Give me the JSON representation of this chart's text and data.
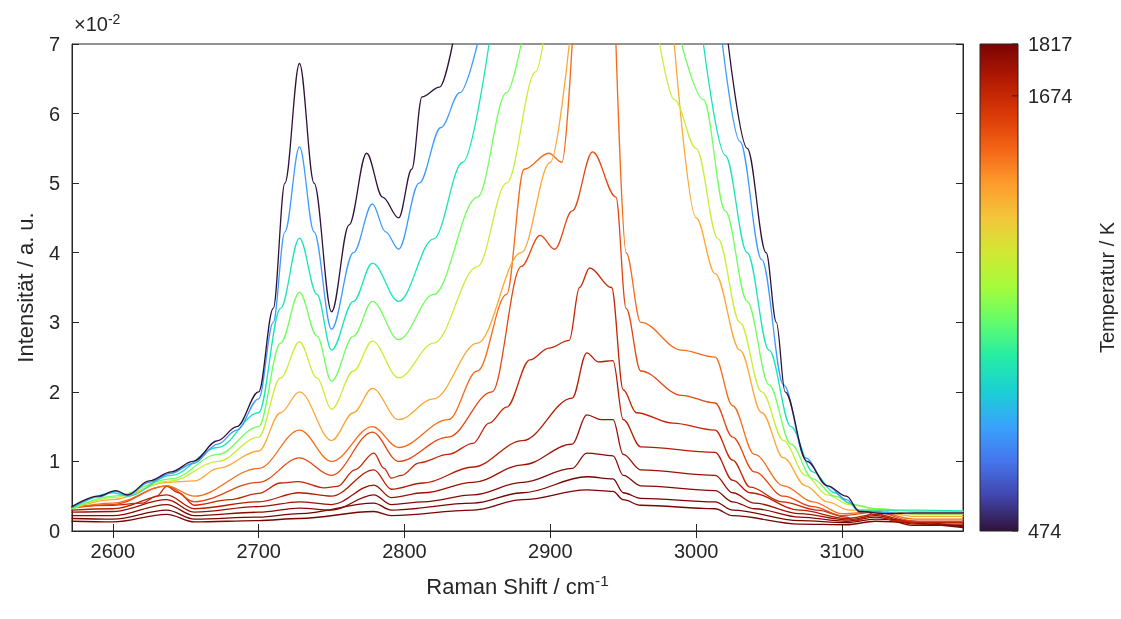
{
  "chart_data": {
    "type": "line",
    "xlabel": "Raman Shift / cm$^{-1}$",
    "ylabel": "Intensität / a. u.",
    "clabel": "Temperatur / K",
    "annotations": [
      "×10$^{-2}$"
    ],
    "xlim": [
      2572,
      3183
    ],
    "ylim": [
      0,
      7
    ],
    "xticks": [
      2600,
      2700,
      2800,
      2900,
      3000,
      3100
    ],
    "yticks": [
      0,
      1,
      2,
      3,
      4,
      5,
      6,
      7
    ],
    "clim": [
      474,
      1817
    ],
    "cticks": [
      474,
      1674,
      1817
    ],
    "marker": "none",
    "line_style": "solid",
    "series": [
      {
        "color": "#30123b",
        "x": [
          2572,
          2590,
          2602,
          2610,
          2625,
          2640,
          2655,
          2672,
          2685,
          2700,
          2710,
          2718,
          2728,
          2738,
          2750,
          2762,
          2774,
          2785,
          2796,
          2805,
          2812,
          2824,
          2833,
          2900,
          3022,
          3035,
          3048,
          3055,
          3061,
          3076,
          3090,
          3103,
          3112,
          3130,
          3150,
          3183
        ],
        "values": [
          0.35,
          0.5,
          0.58,
          0.52,
          0.72,
          0.85,
          1.0,
          1.3,
          1.5,
          2.0,
          3.2,
          5.0,
          6.72,
          5.0,
          3.15,
          4.4,
          5.43,
          4.8,
          4.5,
          5.2,
          6.24,
          6.38,
          7,
          null,
          7,
          5.5,
          4,
          3,
          2,
          1,
          0.65,
          0.5,
          0.28,
          0.25,
          0.26,
          0.26
        ]
      },
      {
        "color": "#3e9bfe",
        "x": [
          2572,
          2590,
          2602,
          2610,
          2625,
          2640,
          2655,
          2672,
          2685,
          2700,
          2710,
          2718,
          2728,
          2738,
          2750,
          2765,
          2778,
          2787,
          2796,
          2810,
          2825,
          2838,
          2850,
          2930,
          3018,
          3030,
          3045,
          3060,
          3075,
          3090,
          3103,
          3112,
          3150,
          3183
        ],
        "values": [
          0.34,
          0.49,
          0.57,
          0.51,
          0.7,
          0.83,
          0.97,
          1.25,
          1.45,
          1.9,
          3.0,
          4.3,
          5.52,
          4.3,
          2.9,
          4.0,
          4.7,
          4.3,
          4.05,
          5.0,
          5.8,
          6.3,
          7,
          null,
          7,
          5.6,
          3.9,
          2.1,
          1.05,
          0.65,
          0.45,
          0.28,
          0.25,
          0.25
        ]
      },
      {
        "color": "#1ae4b6",
        "x": [
          2572,
          2600,
          2610,
          2640,
          2672,
          2700,
          2715,
          2728,
          2740,
          2750,
          2765,
          2778,
          2796,
          2820,
          2840,
          2858,
          2930,
          3005,
          3020,
          3035,
          3050,
          3065,
          3080,
          3095,
          3105,
          3112,
          3123,
          3150,
          3183
        ],
        "values": [
          0.33,
          0.55,
          0.5,
          0.8,
          1.2,
          1.7,
          3.2,
          4.21,
          3.4,
          2.6,
          3.3,
          3.85,
          3.3,
          4.2,
          5.3,
          7,
          null,
          7,
          5.4,
          4.0,
          2.6,
          1.5,
          0.85,
          0.55,
          0.4,
          0.3,
          0.3,
          0.3,
          0.29
        ]
      },
      {
        "color": "#72fe5e",
        "x": [
          2572,
          2600,
          2640,
          2672,
          2700,
          2715,
          2728,
          2740,
          2750,
          2765,
          2778,
          2796,
          2820,
          2850,
          2870,
          2880,
          2930,
          2990,
          3005,
          3020,
          3035,
          3050,
          3065,
          3080,
          3095,
          3108,
          3123,
          3150,
          3183
        ],
        "values": [
          0.32,
          0.5,
          0.75,
          1.1,
          1.5,
          2.7,
          3.43,
          2.8,
          2.15,
          2.8,
          3.3,
          2.75,
          3.4,
          4.8,
          6.3,
          7,
          null,
          7,
          6.2,
          4.6,
          3.3,
          2.1,
          1.25,
          0.75,
          0.5,
          0.38,
          0.32,
          0.28,
          0.28
        ]
      },
      {
        "color": "#c8ef34",
        "x": [
          2572,
          2600,
          2640,
          2672,
          2700,
          2715,
          2728,
          2740,
          2750,
          2765,
          2778,
          2796,
          2820,
          2850,
          2870,
          2890,
          2895,
          2930,
          2975,
          2985,
          3000,
          3015,
          3030,
          3045,
          3060,
          3075,
          3090,
          3105,
          3123,
          3150,
          3183
        ],
        "values": [
          0.32,
          0.48,
          0.72,
          1.0,
          1.35,
          2.2,
          2.72,
          2.2,
          1.75,
          2.3,
          2.73,
          2.2,
          2.7,
          3.8,
          5.0,
          6.6,
          7,
          null,
          7,
          6.2,
          5.5,
          4.2,
          3.0,
          2.0,
          1.3,
          0.8,
          0.52,
          0.38,
          0.32,
          0.24,
          0.24
        ]
      },
      {
        "color": "#fca835",
        "x": [
          2572,
          2600,
          2637,
          2656,
          2672,
          2700,
          2715,
          2728,
          2750,
          2765,
          2778,
          2796,
          2820,
          2850,
          2880,
          2900,
          2913,
          2950,
          2985,
          3000,
          3013,
          3030,
          3045,
          3060,
          3075,
          3090,
          3105,
          3123,
          3150,
          3183
        ],
        "values": [
          0.32,
          0.45,
          0.7,
          0.72,
          0.9,
          1.15,
          1.7,
          2.0,
          1.3,
          1.7,
          2.05,
          1.6,
          1.9,
          2.7,
          4.0,
          5.3,
          7,
          null,
          7,
          4.5,
          3.7,
          2.6,
          1.7,
          1.05,
          0.65,
          0.42,
          0.3,
          0.3,
          0.21,
          0.21
        ]
      },
      {
        "color": "#f66b19",
        "x": [
          2572,
          2600,
          2637,
          2656,
          2700,
          2728,
          2750,
          2778,
          2796,
          2830,
          2850,
          2870,
          2882,
          2899,
          2908,
          2915,
          2930,
          2945,
          2952,
          2962,
          2990,
          3013,
          3025,
          3040,
          3060,
          3080,
          3100,
          3123,
          3150,
          3183
        ],
        "values": [
          0.33,
          0.4,
          0.65,
          0.5,
          0.9,
          1.45,
          1.0,
          1.5,
          1.2,
          1.6,
          2.3,
          3.4,
          5.2,
          5.43,
          5.3,
          7,
          null,
          7,
          4.0,
          3.0,
          2.6,
          2.5,
          1.8,
          1.1,
          0.65,
          0.42,
          0.25,
          0.28,
          0.17,
          0.17
        ]
      },
      {
        "color": "#e4460f",
        "x": [
          2572,
          2600,
          2637,
          2656,
          2700,
          2728,
          2750,
          2778,
          2796,
          2830,
          2860,
          2880,
          2893,
          2903,
          2915,
          2929,
          2945,
          2952,
          2962,
          2990,
          3013,
          3025,
          3040,
          3060,
          3080,
          3100,
          3123,
          3150,
          3183
        ],
        "values": [
          0.33,
          0.38,
          0.65,
          0.42,
          0.7,
          1.05,
          0.8,
          1.42,
          1.0,
          1.35,
          2.0,
          3.8,
          4.25,
          4.05,
          4.6,
          5.45,
          4.8,
          3.2,
          2.3,
          1.95,
          1.84,
          1.35,
          0.85,
          0.5,
          0.35,
          0.22,
          0.27,
          0.14,
          0.14
        ]
      },
      {
        "color": "#c42503",
        "x": [
          2572,
          2600,
          2620,
          2630,
          2637,
          2645,
          2656,
          2680,
          2700,
          2715,
          2727,
          2745,
          2754,
          2766,
          2779,
          2786,
          2791,
          2798,
          2810,
          2830,
          2847,
          2858,
          2870,
          2886,
          2899,
          2913,
          2920,
          2927,
          2942,
          2950,
          2959,
          2984,
          3013,
          3025,
          3037,
          3059,
          3083,
          3103,
          3110,
          3123,
          3135,
          3150,
          3183
        ],
        "values": [
          0.35,
          0.37,
          0.4,
          0.5,
          0.64,
          0.55,
          0.37,
          0.45,
          0.54,
          0.69,
          0.71,
          0.62,
          0.64,
          0.88,
          1.12,
          0.9,
          0.76,
          0.8,
          0.98,
          1.1,
          1.26,
          1.55,
          1.78,
          2.46,
          2.63,
          2.74,
          3.5,
          3.78,
          3.5,
          2.03,
          1.7,
          1.55,
          1.45,
          1.02,
          0.63,
          0.42,
          0.3,
          0.2,
          0.15,
          0.27,
          0.15,
          0.13,
          0.13
        ]
      },
      {
        "color": "#b41c02",
        "x": [
          2572,
          2600,
          2637,
          2656,
          2700,
          2728,
          2750,
          2779,
          2791,
          2813,
          2847,
          2881,
          2915,
          2925,
          2933,
          2943,
          2950,
          2962,
          3013,
          3025,
          3037,
          3071,
          3103,
          3123,
          3150,
          3183
        ],
        "values": [
          0.3,
          0.32,
          0.52,
          0.32,
          0.42,
          0.55,
          0.5,
          0.88,
          0.6,
          0.69,
          0.92,
          1.3,
          1.91,
          2.56,
          2.43,
          2.45,
          1.6,
          1.21,
          1.13,
          0.73,
          0.55,
          0.3,
          0.18,
          0.24,
          0.12,
          0.12
        ]
      },
      {
        "color": "#9b1002",
        "x": [
          2572,
          2600,
          2637,
          2656,
          2700,
          2728,
          2750,
          2779,
          2791,
          2813,
          2847,
          2881,
          2915,
          2925,
          2935,
          2943,
          2950,
          2962,
          3013,
          3025,
          3040,
          3071,
          3103,
          3123,
          3150,
          3183
        ],
        "values": [
          0.27,
          0.28,
          0.45,
          0.27,
          0.35,
          0.42,
          0.38,
          0.66,
          0.48,
          0.55,
          0.7,
          0.95,
          1.25,
          1.67,
          1.6,
          1.6,
          1.1,
          0.88,
          0.8,
          0.55,
          0.4,
          0.25,
          0.16,
          0.22,
          0.1,
          0.1
        ]
      },
      {
        "color": "#870a02",
        "x": [
          2572,
          2600,
          2637,
          2656,
          2700,
          2728,
          2750,
          2779,
          2791,
          2813,
          2847,
          2881,
          2915,
          2925,
          2943,
          2950,
          2962,
          3013,
          3025,
          3040,
          3071,
          3103,
          3123,
          3150,
          3183
        ],
        "values": [
          0.22,
          0.22,
          0.38,
          0.22,
          0.27,
          0.33,
          0.3,
          0.52,
          0.38,
          0.42,
          0.52,
          0.7,
          0.9,
          1.12,
          1.08,
          0.8,
          0.65,
          0.58,
          0.42,
          0.32,
          0.2,
          0.14,
          0.2,
          0.08,
          0.08
        ]
      },
      {
        "color": "#740602",
        "x": [
          2572,
          2600,
          2637,
          2656,
          2700,
          2728,
          2779,
          2791,
          2847,
          2881,
          2925,
          2943,
          2950,
          2962,
          3013,
          3025,
          3071,
          3103,
          3123,
          3183
        ],
        "values": [
          0.18,
          0.17,
          0.3,
          0.17,
          0.2,
          0.25,
          0.4,
          0.3,
          0.4,
          0.55,
          0.78,
          0.75,
          0.55,
          0.47,
          0.42,
          0.3,
          0.15,
          0.12,
          0.17,
          0.06
        ]
      },
      {
        "color": "#7a0403",
        "x": [
          2572,
          2600,
          2637,
          2656,
          2700,
          2728,
          2779,
          2791,
          2847,
          2881,
          2925,
          2943,
          2950,
          2962,
          3013,
          3025,
          3071,
          3103,
          3123,
          3183
        ],
        "values": [
          0.14,
          0.13,
          0.24,
          0.13,
          0.15,
          0.18,
          0.28,
          0.22,
          0.3,
          0.45,
          0.59,
          0.57,
          0.45,
          0.37,
          0.32,
          0.22,
          0.1,
          0.09,
          0.14,
          0.05
        ]
      }
    ]
  }
}
